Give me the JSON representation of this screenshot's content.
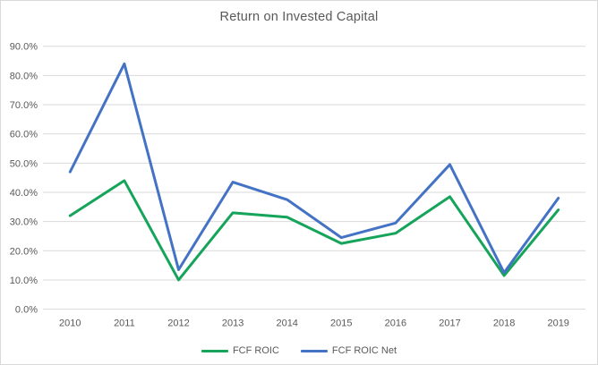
{
  "title": "Return on Invested Capital",
  "colors": {
    "background": "#FFFFFF",
    "border": "#D9D9D9",
    "gridline": "#D9D9D9",
    "axis_text": "#595959",
    "title_text": "#595959",
    "series_green": "#15A45A",
    "series_blue": "#4472C4"
  },
  "legend": {
    "items": [
      {
        "label": "FCF ROIC",
        "color": "#15A45A"
      },
      {
        "label": "FCF ROIC Net",
        "color": "#4472C4"
      }
    ]
  },
  "chart_data": {
    "type": "line",
    "title": "Return on Invested Capital",
    "categories": [
      "2010",
      "2011",
      "2012",
      "2013",
      "2014",
      "2015",
      "2016",
      "2017",
      "2018",
      "2019"
    ],
    "series": [
      {
        "name": "FCF ROIC",
        "color": "#15A45A",
        "values": [
          32,
          44,
          10,
          33,
          31.5,
          22.5,
          26,
          38.5,
          11.5,
          34
        ]
      },
      {
        "name": "FCF ROIC Net",
        "color": "#4472C4",
        "values": [
          47,
          84,
          13.5,
          43.5,
          37.5,
          24.5,
          29.5,
          49.5,
          12.5,
          38
        ]
      }
    ],
    "xlabel": "",
    "ylabel": "",
    "unit": "percent",
    "ylim": [
      0,
      90
    ],
    "ytick_values": [
      0,
      10,
      20,
      30,
      40,
      50,
      60,
      70,
      80,
      90
    ],
    "ytick_labels": [
      "0.0%",
      "10.0%",
      "20.0%",
      "30.0%",
      "40.0%",
      "50.0%",
      "60.0%",
      "70.0%",
      "80.0%",
      "90.0%"
    ],
    "grid": true,
    "legend_position": "bottom"
  }
}
